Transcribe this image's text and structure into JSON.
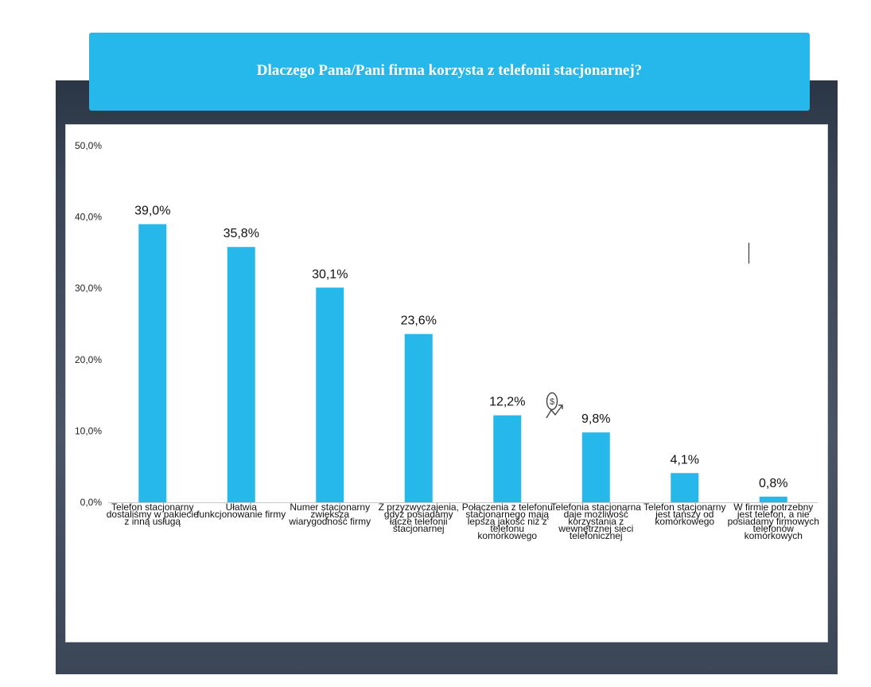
{
  "title": "Dlaczego Pana/Pani firma korzysta z telefonii stacjonarnej?",
  "colors": {
    "banner": "#26b8ea",
    "bar": "#26b8ea",
    "background": "#3a4656"
  },
  "icons": [
    "dollar-growth-icon"
  ],
  "chart_data": {
    "type": "bar",
    "title": "Dlaczego Pana/Pani firma korzysta z telefonii stacjonarnej?",
    "xlabel": "",
    "ylabel": "",
    "ylim": [
      0,
      50
    ],
    "yticks": [
      "0,0%",
      "10,0%",
      "20,0%",
      "30,0%",
      "40,0%",
      "50,0%"
    ],
    "grid": false,
    "legend": "none",
    "categories": [
      "Telefon stacjonarny dostaliśmy w pakiecie z inną usługą",
      "Ułatwia funkcjonowanie firmy",
      "Numer stacjonarny zwiększa wiarygodność firmy",
      "Z przyzwyczajenia, gdyż posiadamy łącze telefonii stacjonarnej",
      "Połączenia z telefonu stacjonarnego mają lepszą jakość niż z telefonu komórkowego",
      "Telefonia stacjonarna daje możliwość korzystania z wewnętrznej sieci telefonicznej",
      "Telefon stacjonarny jest tańszy od komórkowego",
      "W firmie potrzebny jest telefon, a nie posiadamy firmowych telefonów komórkowych"
    ],
    "values": [
      39.0,
      35.8,
      30.1,
      23.6,
      12.2,
      9.8,
      4.1,
      0.8
    ],
    "data_labels": [
      "39,0%",
      "35,8%",
      "30,1%",
      "23,6%",
      "12,2%",
      "9,8%",
      "4,1%",
      "0,8%"
    ]
  }
}
